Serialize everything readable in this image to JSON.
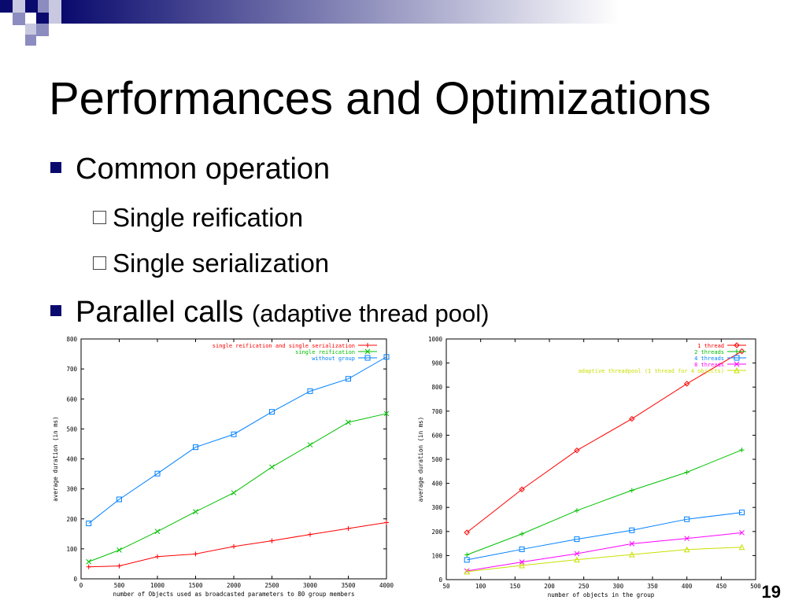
{
  "slide": {
    "title": "Performances and Optimizations",
    "bullets": [
      {
        "text": "Common operation"
      },
      {
        "text": "Parallel calls",
        "note": "(adaptive thread pool)"
      }
    ],
    "sub_bullets": [
      "Single reification",
      "Single serialization"
    ],
    "page_number": "19",
    "colors": {
      "bullet": "#0a0a6e",
      "header_dark": "#0a0a6e",
      "header_light": "#ffffff"
    }
  },
  "chart_data": [
    {
      "type": "line",
      "title": "",
      "xlabel": "number of Objects used as broadcasted parameters to 80 group members",
      "ylabel": "average duration (in ms)",
      "x": [
        100,
        500,
        1000,
        1500,
        2000,
        2500,
        3000,
        3500,
        4000
      ],
      "xlim": [
        0,
        4000
      ],
      "ylim": [
        0,
        800
      ],
      "xticks": [
        0,
        500,
        1000,
        1500,
        2000,
        2500,
        3000,
        3500,
        4000
      ],
      "yticks": [
        0,
        100,
        200,
        300,
        400,
        500,
        600,
        700,
        800
      ],
      "legend_position": "top-left",
      "grid": false,
      "series": [
        {
          "name": "single reification and single serialization",
          "color": "#ff0000",
          "marker": "plus",
          "values": [
            40,
            43,
            74,
            83,
            108,
            127,
            148,
            168,
            188
          ]
        },
        {
          "name": "single reification",
          "color": "#00c000",
          "marker": "x",
          "values": [
            57,
            96,
            158,
            224,
            287,
            373,
            447,
            522,
            551
          ]
        },
        {
          "name": "without group",
          "color": "#0080ff",
          "marker": "square",
          "values": [
            185,
            265,
            351,
            439,
            482,
            557,
            626,
            667,
            740
          ]
        }
      ]
    },
    {
      "type": "line",
      "title": "",
      "xlabel": "number of objects in the group",
      "ylabel": "average duration (in ms)",
      "x": [
        80,
        160,
        240,
        320,
        400,
        480
      ],
      "xlim": [
        50,
        500
      ],
      "ylim": [
        0,
        1000
      ],
      "xticks": [
        50,
        100,
        150,
        200,
        250,
        300,
        350,
        400,
        450,
        500
      ],
      "yticks": [
        0,
        100,
        200,
        300,
        400,
        500,
        600,
        700,
        800,
        900,
        1000
      ],
      "legend_position": "top-right",
      "grid": false,
      "series": [
        {
          "name": "1 thread",
          "color": "#ff0000",
          "marker": "diamond",
          "values": [
            196,
            375,
            537,
            668,
            814,
            949
          ]
        },
        {
          "name": "2 threads",
          "color": "#00c000",
          "marker": "plus",
          "values": [
            103,
            190,
            287,
            371,
            446,
            539
          ]
        },
        {
          "name": "4 threads",
          "color": "#0080ff",
          "marker": "square",
          "values": [
            82,
            126,
            168,
            205,
            251,
            279
          ]
        },
        {
          "name": "8 threads",
          "color": "#ff00ff",
          "marker": "x",
          "values": [
            36,
            73,
            108,
            149,
            171,
            195
          ]
        },
        {
          "name": "adaptive threadpool (1 thread for 4 objects)",
          "color": "#c8e000",
          "marker": "triangle",
          "values": [
            33,
            59,
            83,
            104,
            125,
            135
          ]
        }
      ]
    }
  ]
}
